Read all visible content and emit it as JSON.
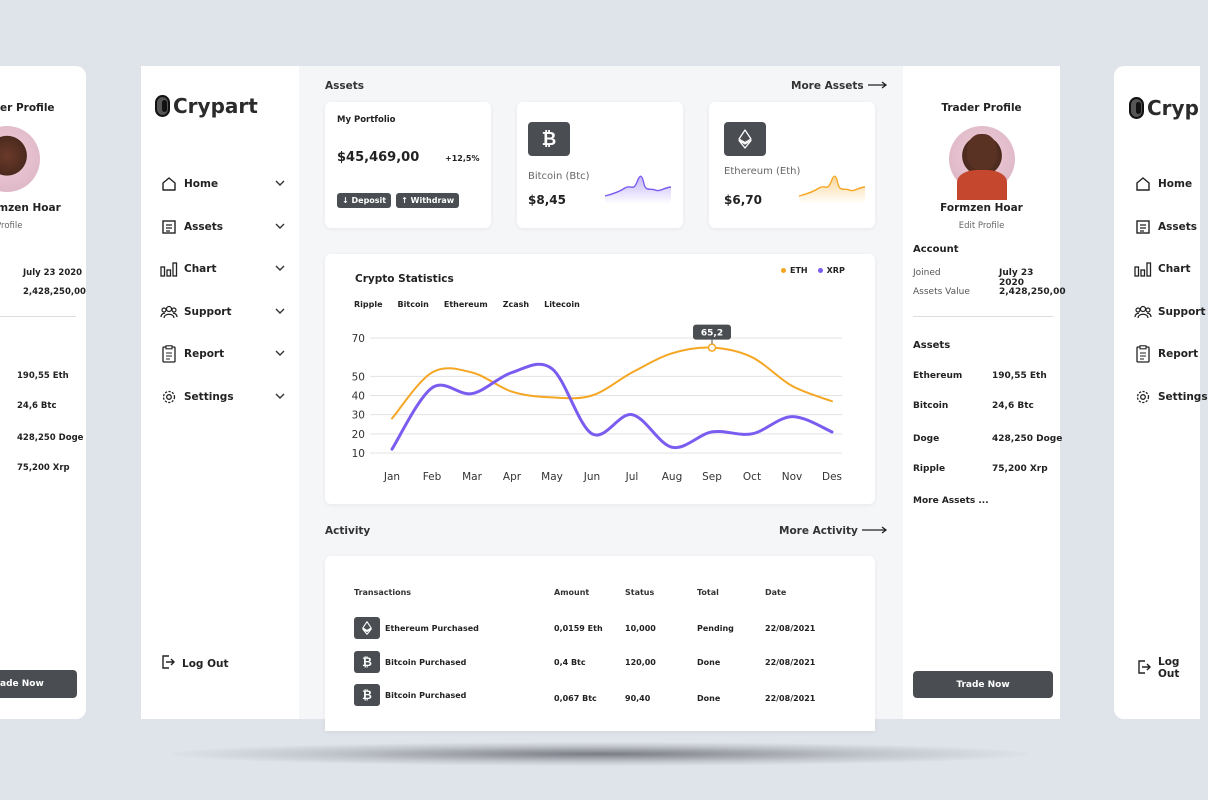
{
  "brand": {
    "name": "Crypart"
  },
  "nav": {
    "items": [
      {
        "label": "Home",
        "icon": "home-icon"
      },
      {
        "label": "Assets",
        "icon": "assets-icon"
      },
      {
        "label": "Chart",
        "icon": "chart-icon"
      },
      {
        "label": "Support",
        "icon": "support-icon"
      },
      {
        "label": "Report",
        "icon": "report-icon"
      },
      {
        "label": "Settings",
        "icon": "settings-icon"
      }
    ],
    "logout": "Log Out"
  },
  "assets": {
    "title": "Assets",
    "more": "More Assets",
    "portfolio": {
      "title": "My Portfolio",
      "value": "$45,469,00",
      "change": "+12,5%",
      "deposit": "Deposit",
      "withdraw": "Withdraw"
    },
    "bitcoin": {
      "name": "Bitcoin (Btc)",
      "value": "$8,45",
      "color": "#7b5cf0"
    },
    "ethereum": {
      "name": "Ethereum (Eth)",
      "value": "$6,70",
      "color": "#f5a623"
    }
  },
  "stats": {
    "title": "Crypto Statistics",
    "tabs": [
      "Ripple",
      "Bitcoin",
      "Ethereum",
      "Zcash",
      "Litecoin"
    ],
    "legend": [
      {
        "name": "ETH",
        "color": "#f5a623"
      },
      {
        "name": "XRP",
        "color": "#7b5cf0"
      }
    ],
    "tooltip": "65,2"
  },
  "chart_data": {
    "type": "line",
    "categories": [
      "Jan",
      "Feb",
      "Mar",
      "Apr",
      "May",
      "Jun",
      "Jul",
      "Aug",
      "Sep",
      "Oct",
      "Nov",
      "Des"
    ],
    "yticks": [
      10,
      20,
      30,
      40,
      50,
      70
    ],
    "series": [
      {
        "name": "ETH",
        "color": "#f5a623",
        "values": [
          28,
          52,
          52,
          42,
          39,
          40,
          52,
          62,
          65,
          60,
          45,
          37
        ]
      },
      {
        "name": "XRP",
        "color": "#7b5cf0",
        "values": [
          12,
          44,
          41,
          52,
          54,
          20,
          30,
          13,
          21,
          20,
          29,
          21
        ]
      }
    ],
    "highlight": {
      "series": "ETH",
      "category": "Sep",
      "label": "65,2"
    }
  },
  "activity": {
    "title": "Activity",
    "more": "More Activity",
    "headers": [
      "Transactions",
      "Amount",
      "Status",
      "Total",
      "Date"
    ],
    "rows": [
      {
        "icon": "ethereum-icon",
        "name": "Ethereum Purchased",
        "amount": "0,0159 Eth",
        "status": "10,000",
        "total": "Pending",
        "date": "22/08/2021"
      },
      {
        "icon": "bitcoin-icon",
        "name": "Bitcoin Purchased",
        "amount": "0,4 Btc",
        "status": "120,00",
        "total": "Done",
        "date": "22/08/2021"
      },
      {
        "icon": "bitcoin-icon",
        "name": "Bitcoin Purchased",
        "amount": "0,067 Btc",
        "status": "90,40",
        "total": "Done",
        "date": "22/08/2021"
      }
    ]
  },
  "profile": {
    "title": "Trader Profile",
    "name": "Formzen Hoar",
    "edit": "Edit Profile",
    "account_title": "Account",
    "joined_label": "Joined",
    "joined": "July 23 2020",
    "assets_value_label": "Assets Value",
    "assets_value": "2,428,250,00",
    "assets_title": "Assets",
    "assets": [
      {
        "label": "Ethereum",
        "value": "190,55 Eth"
      },
      {
        "label": "Bitcoin",
        "value": "24,6 Btc"
      },
      {
        "label": "Doge",
        "value": "428,250 Doge"
      },
      {
        "label": "Ripple",
        "value": "75,200 Xrp"
      }
    ],
    "more": "More Assets ...",
    "trade": "Trade Now"
  },
  "ghost_left": {
    "title": "er Profile",
    "name": "rmzen Hoar",
    "edit": "t Profile",
    "joined": "July 23 2020",
    "assets_value": "2,428,250,00",
    "assets": [
      "190,55 Eth",
      "24,6 Btc",
      "428,250 Doge",
      "75,200 Xrp"
    ],
    "trade": "ade Now"
  },
  "ghost_right": {
    "brand": "Cryp",
    "nav": [
      "Home",
      "Assets",
      "Chart",
      "Support",
      "Report",
      "Settings"
    ],
    "logout": "Log Out"
  }
}
